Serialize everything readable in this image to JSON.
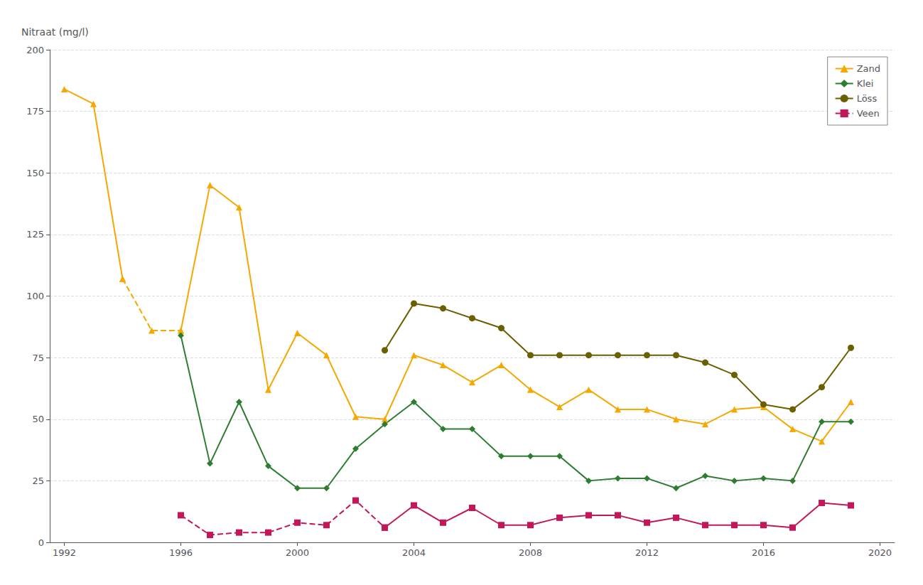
{
  "chart_data": {
    "type": "line",
    "ylabel": "Nitraat (mg/l)",
    "xlim": [
      1991.5,
      2020.5
    ],
    "xticks": [
      1992,
      1996,
      2000,
      2004,
      2008,
      2012,
      2016,
      2020
    ],
    "ylim": [
      0,
      200
    ],
    "yticks": [
      0,
      25,
      50,
      75,
      100,
      125,
      150,
      175,
      200
    ],
    "grid": true,
    "legend": "upper right",
    "series": [
      {
        "name": "Zand",
        "color": "#F5A800",
        "marker": "triangle",
        "line_style": "solid",
        "x": [
          1992,
          1993,
          1994
        ],
        "values": [
          184,
          178,
          107
        ]
      },
      {
        "name": "Zand",
        "color": "#F5A800",
        "marker": "triangle",
        "line_style": "dashed",
        "x": [
          1994,
          1995,
          1996
        ],
        "values": [
          107,
          86,
          86
        ]
      },
      {
        "name": "Zand",
        "color": "#F5A800",
        "marker": "triangle",
        "line_style": "solid",
        "x": [
          1996,
          1997,
          1998,
          1999,
          2000,
          2001,
          2002,
          2003,
          2004,
          2005,
          2006,
          2007,
          2008,
          2009,
          2010,
          2011,
          2012,
          2013,
          2014,
          2015,
          2016,
          2017,
          2018,
          2019
        ],
        "values": [
          86,
          145,
          136,
          62,
          85,
          76,
          51,
          50,
          76,
          72,
          65,
          72,
          62,
          55,
          62,
          54,
          54,
          50,
          48,
          54,
          55,
          46,
          41,
          57
        ]
      },
      {
        "name": "Klei",
        "color": "#2E7D32",
        "marker": "diamond",
        "line_style": "solid",
        "x": [
          1996,
          1997,
          1998,
          1999,
          2000,
          2001,
          2002,
          2003,
          2004,
          2005,
          2006,
          2007,
          2008,
          2009,
          2010,
          2011,
          2012,
          2013,
          2014,
          2015,
          2016,
          2017,
          2018,
          2019
        ],
        "values": [
          84,
          32,
          57,
          31,
          22,
          22,
          38,
          48,
          57,
          46,
          46,
          35,
          35,
          35,
          25,
          26,
          26,
          22,
          27,
          25,
          26,
          25,
          49,
          49
        ]
      },
      {
        "name": "Löss",
        "color": "#6B6000",
        "marker": "circle",
        "line_style": "solid",
        "x": [
          2003,
          2004,
          2005,
          2006,
          2007,
          2008,
          2009,
          2010,
          2011,
          2012,
          2013,
          2014,
          2015,
          2016,
          2017,
          2018,
          2019
        ],
        "values": [
          78,
          97,
          95,
          91,
          87,
          76,
          76,
          76,
          76,
          76,
          76,
          73,
          68,
          56,
          54,
          63,
          79
        ]
      },
      {
        "name": "Veen",
        "color": "#C2185B",
        "marker": "square",
        "line_style": "dashed",
        "x": [
          1996,
          1997,
          1998,
          1999,
          2000,
          2001,
          2002,
          2003
        ],
        "values": [
          11,
          3,
          4,
          4,
          8,
          7,
          17,
          6
        ]
      },
      {
        "name": "Veen",
        "color": "#C2185B",
        "marker": "square",
        "line_style": "solid",
        "x": [
          2003,
          2004,
          2005,
          2006,
          2007,
          2008,
          2009,
          2010,
          2011,
          2012,
          2013,
          2014,
          2015,
          2016,
          2017,
          2018,
          2019
        ],
        "values": [
          6,
          15,
          8,
          14,
          7,
          7,
          10,
          11,
          11,
          8,
          10,
          7,
          7,
          7,
          6,
          16,
          15
        ]
      }
    ]
  }
}
